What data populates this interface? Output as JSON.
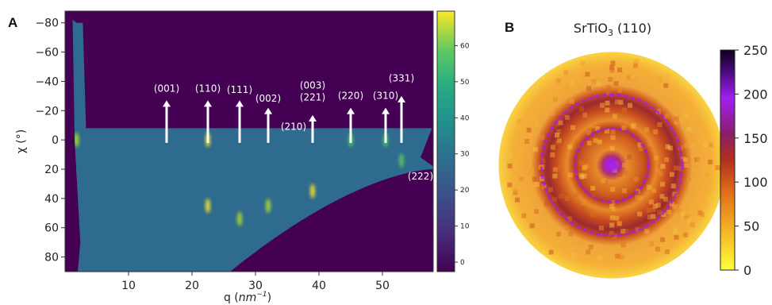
{
  "chart_data": [
    {
      "panel": "A",
      "type": "heatmap",
      "xlabel_main": "q (",
      "xlabel_unit": "nm",
      "xlabel_exp": "−1",
      "xlabel_end": ")",
      "ylabel": "χ (°)",
      "xlim": [
        0,
        58
      ],
      "ylim": [
        -88,
        90
      ],
      "y_inverted": true,
      "xticks": [
        10,
        20,
        30,
        40,
        50
      ],
      "yticks": [
        -80,
        -60,
        -40,
        -20,
        0,
        20,
        40,
        60,
        80
      ],
      "ytick_labels": [
        "−80",
        "−60",
        "−40",
        "−20",
        "0",
        "20",
        "40",
        "60",
        "80"
      ],
      "colormap": "viridis",
      "colorbar": {
        "min": 0,
        "max": 70,
        "ticks": [
          0,
          10,
          20,
          30,
          40,
          50,
          60
        ]
      },
      "annotations": [
        {
          "label": "(001)",
          "q": 16,
          "arrow": true
        },
        {
          "label": "(110)",
          "q": 22.5,
          "arrow": true
        },
        {
          "label": "(111)",
          "q": 27.5,
          "arrow": true
        },
        {
          "label": "(002)",
          "q": 32,
          "arrow": true
        },
        {
          "label": "(210)",
          "q": 36,
          "arrow": false
        },
        {
          "label": "(003)",
          "q": 39,
          "arrow": true
        },
        {
          "label": "(221)",
          "q": 39,
          "arrow": true
        },
        {
          "label": "(220)",
          "q": 45,
          "arrow": true
        },
        {
          "label": "(310)",
          "q": 50.5,
          "arrow": true
        },
        {
          "label": "(331)",
          "q": 53,
          "arrow": true
        },
        {
          "label": "(222)",
          "q": 56,
          "arrow": false
        }
      ],
      "peaks": [
        {
          "q": 1.8,
          "chi": 0,
          "intensity": 45
        },
        {
          "q": 22.5,
          "chi": 0,
          "intensity": 60
        },
        {
          "q": 22.5,
          "chi": 45,
          "intensity": 65
        },
        {
          "q": 27.5,
          "chi": 54,
          "intensity": 55
        },
        {
          "q": 32,
          "chi": 45,
          "intensity": 55
        },
        {
          "q": 39,
          "chi": 35,
          "intensity": 60
        },
        {
          "q": 45,
          "chi": 0,
          "intensity": 35
        },
        {
          "q": 50.5,
          "chi": 0,
          "intensity": 40
        },
        {
          "q": 53,
          "chi": 14,
          "intensity": 35
        }
      ]
    },
    {
      "panel": "B",
      "type": "heatmap",
      "title_main": "SrTiO",
      "title_sub": "3",
      "title_end": " (110)",
      "projection": "polar",
      "colormap": "gnuplot-like",
      "colorbar": {
        "min": 0,
        "max": 250,
        "ticks": [
          0,
          50,
          100,
          150,
          200,
          250
        ]
      },
      "rings": [
        {
          "radius_frac": 0.0,
          "level": 150
        },
        {
          "radius_frac": 0.3,
          "level": 140
        },
        {
          "radius_frac": 0.6,
          "level": 150
        },
        {
          "radius_frac": 1.0,
          "level": 40
        }
      ]
    }
  ],
  "colors": {
    "viridis_dark": "#440154",
    "viridis_mid": "#3b5a8c",
    "viridis_yellow": "#fde725",
    "pole_light": "#f5c842",
    "pole_ring": "#9a3a2a",
    "pole_purple": "#a020f0"
  }
}
